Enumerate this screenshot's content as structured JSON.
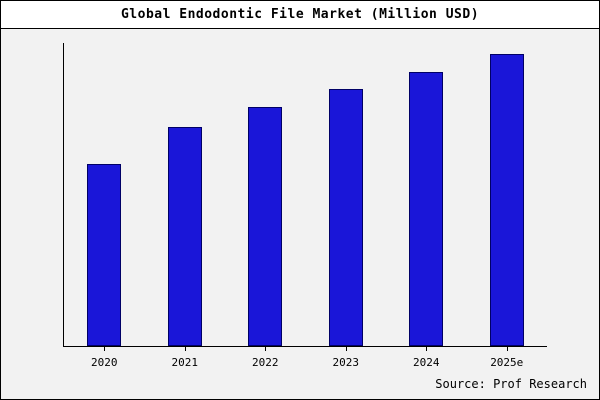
{
  "chart_data": {
    "type": "bar",
    "title": "Global Endodontic File Market (Million USD)",
    "categories": [
      "2020",
      "2021",
      "2022",
      "2023",
      "2024",
      "2025e"
    ],
    "values": [
      185,
      223,
      243,
      261,
      279,
      297
    ],
    "ylim": [
      0,
      308
    ],
    "xlabel": "",
    "ylabel": "",
    "grid": false,
    "legend": false,
    "bar_color": "#1a16d8",
    "bar_border_color": "#000066",
    "plot_background": "#f2f2f2",
    "title_background": "#ffffff"
  },
  "source": "Source: Prof Research"
}
